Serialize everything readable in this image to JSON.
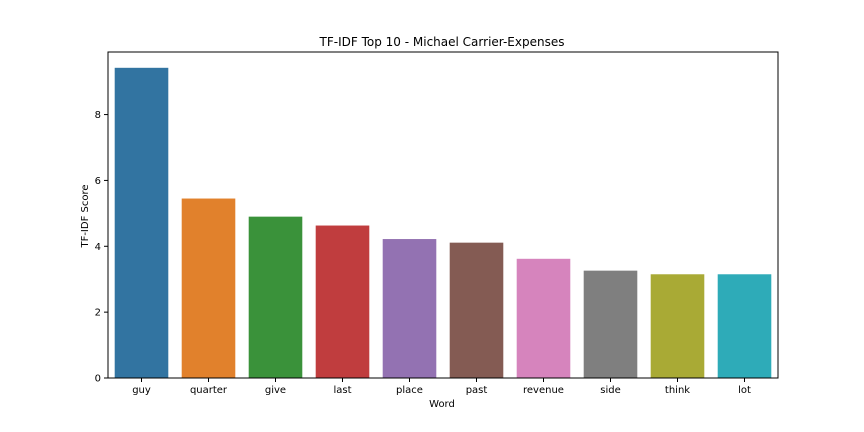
{
  "chart_data": {
    "type": "bar",
    "title": "TF-IDF Top 10 - Michael Carrier-Expenses",
    "xlabel": "Word",
    "ylabel": "TF-IDF Score",
    "categories": [
      "guy",
      "quarter",
      "give",
      "last",
      "place",
      "past",
      "revenue",
      "side",
      "think",
      "lot"
    ],
    "values": [
      9.42,
      5.45,
      4.9,
      4.63,
      4.22,
      4.11,
      3.62,
      3.26,
      3.15,
      3.15
    ],
    "colors": [
      "#3274a1",
      "#e1812c",
      "#3a923a",
      "#c03d3e",
      "#9372b2",
      "#845b53",
      "#d684bd",
      "#7f7f7f",
      "#a9aa35",
      "#2eabb8"
    ],
    "yticks": [
      0,
      2,
      4,
      6,
      8
    ],
    "ylim": [
      0,
      9.9
    ],
    "grid": false,
    "legend": "none"
  }
}
